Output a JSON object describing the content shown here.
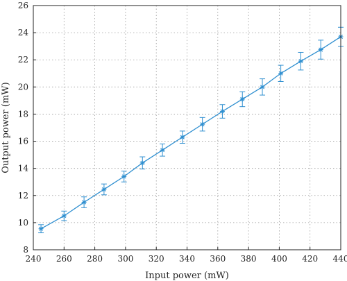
{
  "chart_data": {
    "type": "line",
    "title": "",
    "xlabel": "Input power (mW)",
    "ylabel": "Output power (mW)",
    "xlim": [
      240,
      440
    ],
    "ylim": [
      8,
      26
    ],
    "xticks": [
      240,
      260,
      280,
      300,
      320,
      340,
      360,
      380,
      400,
      420,
      440
    ],
    "yticks": [
      8,
      10,
      12,
      14,
      16,
      18,
      20,
      22,
      24,
      26
    ],
    "grid": true,
    "line_color": "#2f8fd0",
    "series": [
      {
        "x": [
          245,
          260,
          273,
          286,
          299,
          311,
          324,
          337,
          350,
          363,
          376,
          389,
          401,
          414,
          427,
          440
        ],
        "y": [
          9.55,
          10.5,
          11.5,
          12.45,
          13.4,
          14.4,
          15.35,
          16.3,
          17.25,
          18.2,
          19.1,
          20.0,
          21.0,
          21.9,
          22.75,
          23.7
        ],
        "error": [
          0.3,
          0.35,
          0.4,
          0.4,
          0.4,
          0.45,
          0.45,
          0.45,
          0.5,
          0.5,
          0.55,
          0.6,
          0.6,
          0.65,
          0.7,
          0.7
        ],
        "marker": "asterisk"
      }
    ]
  }
}
